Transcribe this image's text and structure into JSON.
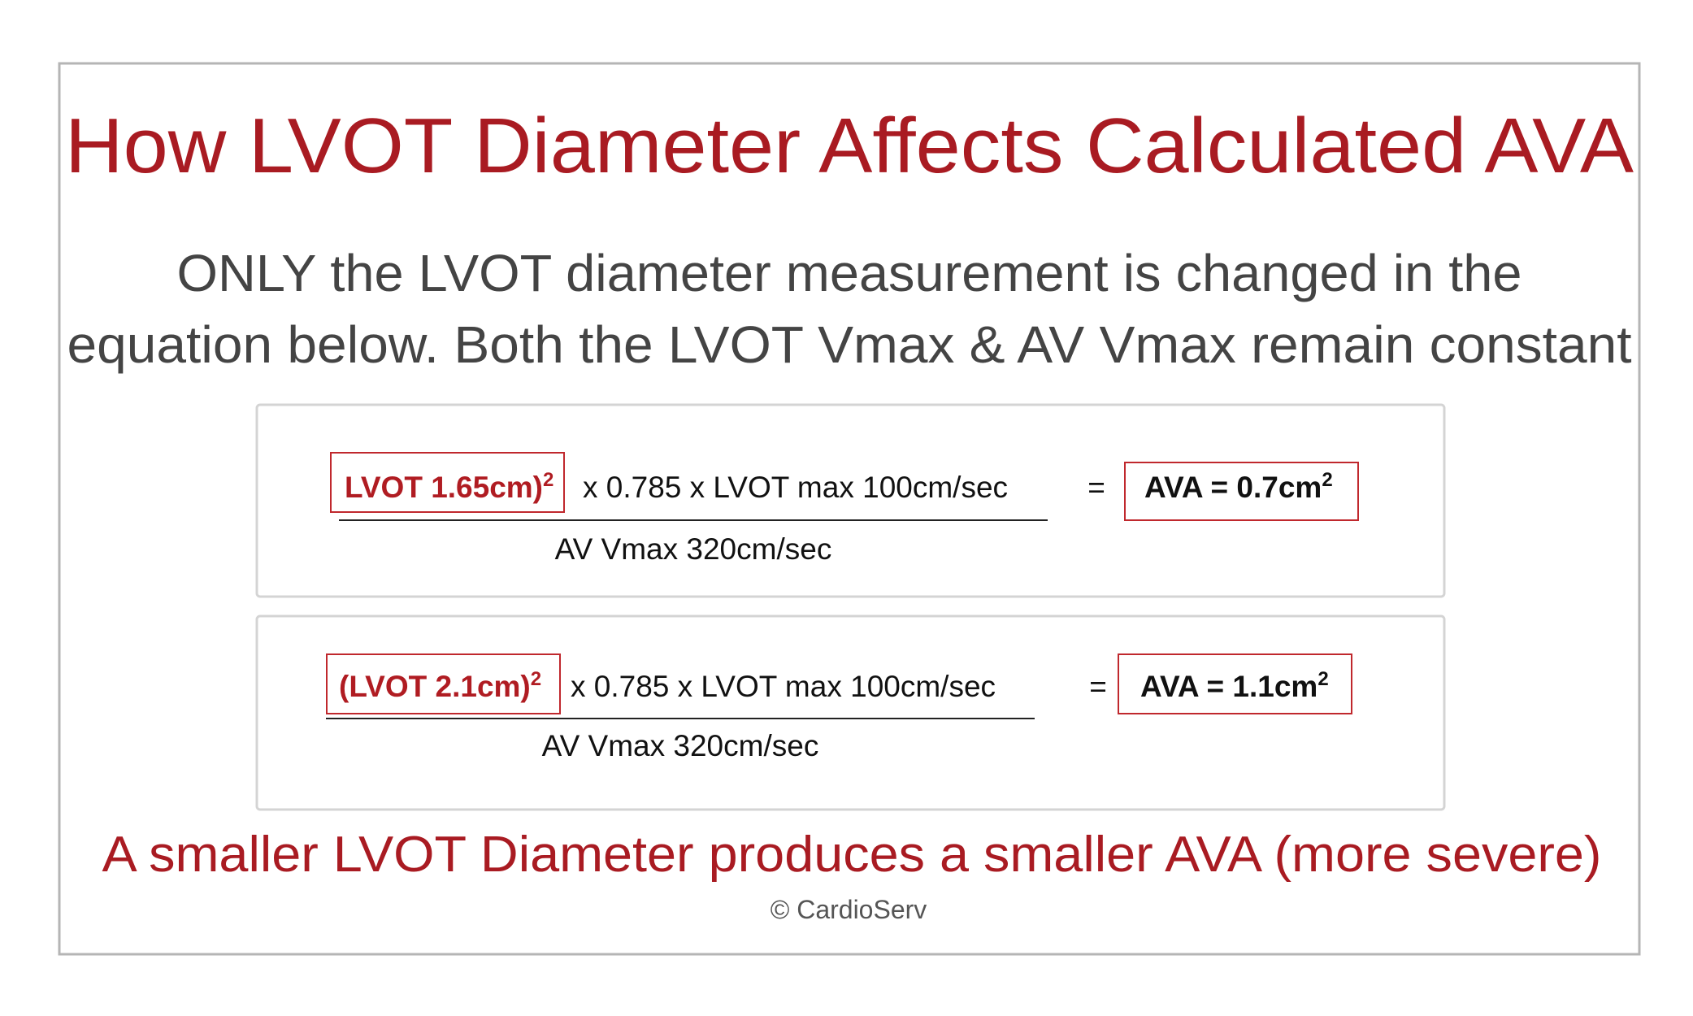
{
  "header": {
    "title": "How LVOT Diameter Affects Calculated AVA",
    "subtitle_lines": [
      "ONLY the LVOT diameter measurement is changed in the",
      "equation below.  Both the LVOT Vmax & AV Vmax remain constant"
    ]
  },
  "equations": [
    {
      "lvot": "LVOT 1.65cm)",
      "lvot_exponent": "2",
      "numerator_rest": "x  0.785  x  LVOT max 100cm/sec",
      "denominator": "AV Vmax 320cm/sec",
      "equals": "=",
      "result": "AVA = 0.7cm",
      "result_exponent": "2"
    },
    {
      "lvot": "(LVOT 2.1cm)",
      "lvot_exponent": "2",
      "numerator_rest": "x  0.785  x  LVOT max 100cm/sec",
      "denominator": "AV Vmax 320cm/sec",
      "equals": "=",
      "result": "AVA = 1.1cm",
      "result_exponent": "2"
    }
  ],
  "footer": {
    "conclusion": "A smaller LVOT Diameter produces a smaller AVA (more severe)",
    "copyright": "© CardioServ"
  }
}
